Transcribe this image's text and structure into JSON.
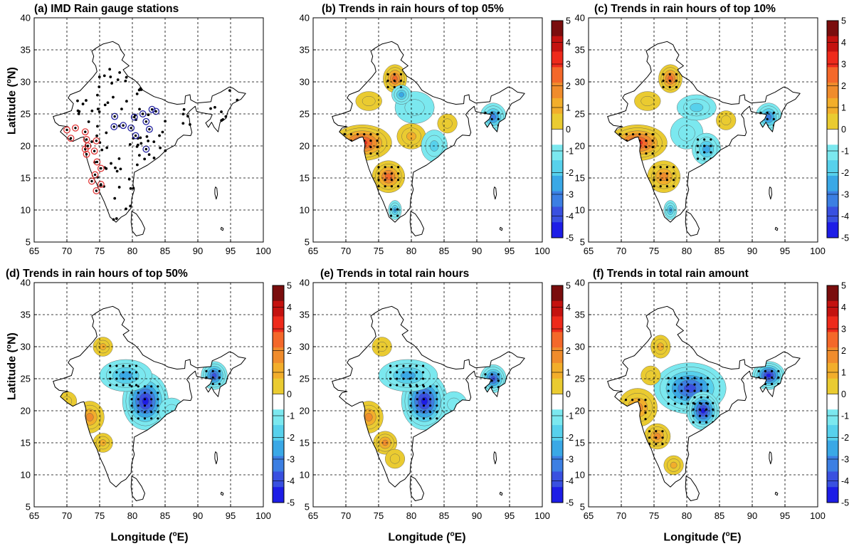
{
  "colors": {
    "cb": [
      "#7a0d0d",
      "#c4120f",
      "#ee2a1b",
      "#f4682a",
      "#f08c2c",
      "#f2ae2b",
      "#eacb31",
      "#ffffff",
      "#7be8ef",
      "#57d1ec",
      "#3aa8e6",
      "#3c7fe3",
      "#3950e0",
      "#1d1de6"
    ],
    "station_black": "#000000",
    "station_red": "#e23a3a",
    "station_blue": "#2222a0"
  },
  "figure": {
    "ylabel": "Latitude (",
    "ylabel_sup": "o",
    "ylabel_end": "N)",
    "xlabel": "Longitude (",
    "xlabel_sup": "o",
    "xlabel_end": "E)"
  },
  "panels": [
    {
      "id": "a",
      "title": "(a) IMD Rain gauge stations"
    },
    {
      "id": "b",
      "title": "(b)  Trends in rain hours of top 05%"
    },
    {
      "id": "c",
      "title": "(c)  Trends in rain hours of top 10%"
    },
    {
      "id": "d",
      "title": "(d)  Trends in rain hours of top 50%"
    },
    {
      "id": "e",
      "title": "(e) Trends in total rain hours"
    },
    {
      "id": "f",
      "title": "(f) Trends in total rain amount"
    }
  ],
  "axes": {
    "x_ticks": [
      "65",
      "70",
      "75",
      "80",
      "85",
      "90",
      "95",
      "100"
    ],
    "y_ticks": [
      "5",
      "10",
      "15",
      "20",
      "25",
      "30",
      "35",
      "40"
    ],
    "xlim": [
      65,
      100
    ],
    "ylim": [
      5,
      40
    ]
  },
  "colorbar": {
    "labels": [
      "5",
      "4",
      "3",
      "2",
      "1",
      "0",
      "-1",
      "-2",
      "-3",
      "-4",
      "-5"
    ]
  }
}
